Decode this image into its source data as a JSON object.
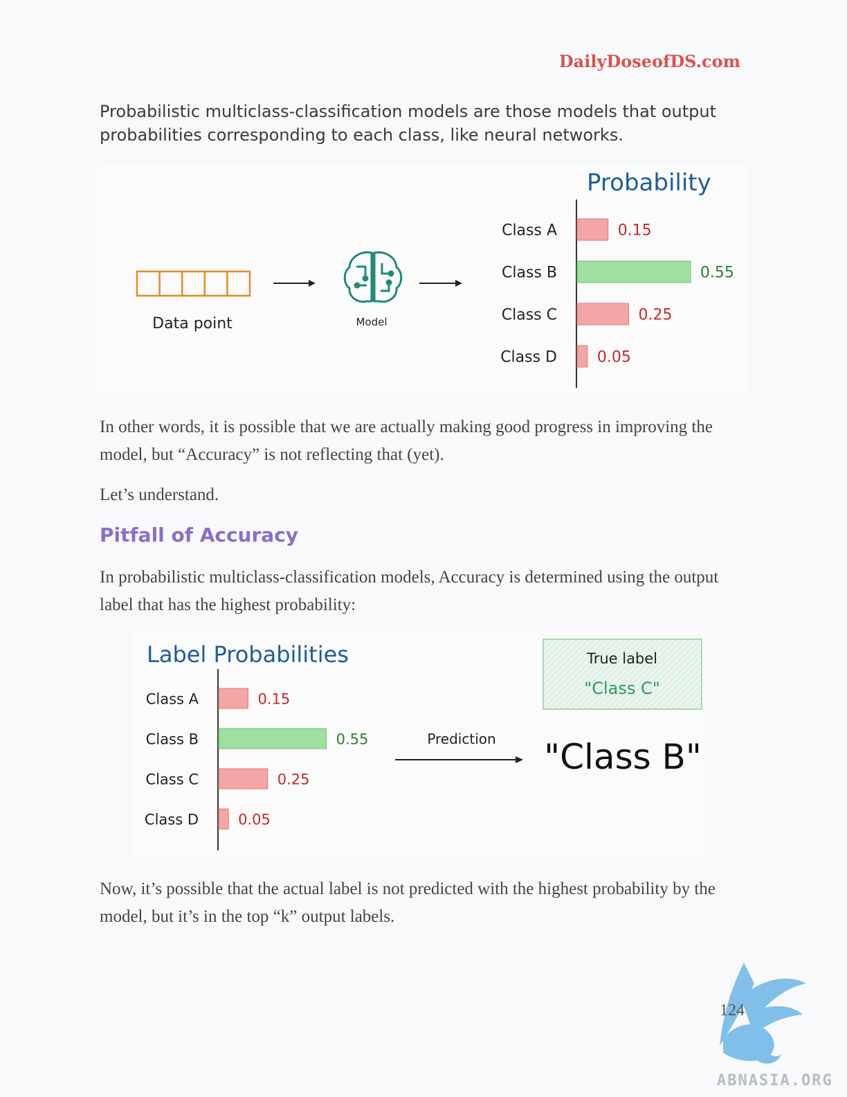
{
  "header": {
    "site": "DailyDoseofDS.com"
  },
  "intro": "Probabilistic multiclass-classification models are those models that output probabilities corresponding to each class, like neural networks.",
  "diagram1": {
    "input_label": "Data point",
    "model_label": "Model",
    "title": "Probability"
  },
  "paragraph1": "In other words, it is possible that we are actually making good progress in improving the model, but “Accuracy” is not reflecting that (yet).",
  "paragraph2": "Let’s understand.",
  "section_heading": "Pitfall of Accuracy",
  "paragraph3": "In probabilistic multiclass-classification models, Accuracy is determined using the output label that has the highest probability:",
  "diagram2": {
    "title": "Label Probabilities",
    "arrow_label": "Prediction",
    "prediction": "\"Class B\"",
    "true_label_title": "True label",
    "true_label_value": "\"Class C\""
  },
  "chart_data": [
    {
      "type": "bar",
      "orientation": "horizontal",
      "title": "Probability",
      "categories": [
        "Class A",
        "Class B",
        "Class C",
        "Class D"
      ],
      "values": [
        0.15,
        0.55,
        0.25,
        0.05
      ],
      "highlight": "Class B",
      "colors": {
        "default": "#f4a5a5",
        "highlight": "#9fdf9f",
        "default_text": "#c62828",
        "highlight_text": "#2e7d32"
      }
    },
    {
      "type": "bar",
      "orientation": "horizontal",
      "title": "Label Probabilities",
      "categories": [
        "Class A",
        "Class B",
        "Class C",
        "Class D"
      ],
      "values": [
        0.15,
        0.55,
        0.25,
        0.05
      ],
      "highlight": "Class B",
      "colors": {
        "default": "#f4a5a5",
        "highlight": "#9fdf9f",
        "default_text": "#c62828",
        "highlight_text": "#2e7d32"
      }
    }
  ],
  "paragraph4": "Now, it’s possible that the actual label is not predicted with the highest probability by the model, but it’s in the top “k” output labels.",
  "footer": {
    "page_number": "124",
    "watermark": "ABNASIA.ORG"
  },
  "colors": {
    "accent": "#d9534f",
    "heading": "#8a6fc9",
    "title_blue": "#1f5c99",
    "input_orange": "#e8891e",
    "model_teal": "#1f8a7a"
  }
}
